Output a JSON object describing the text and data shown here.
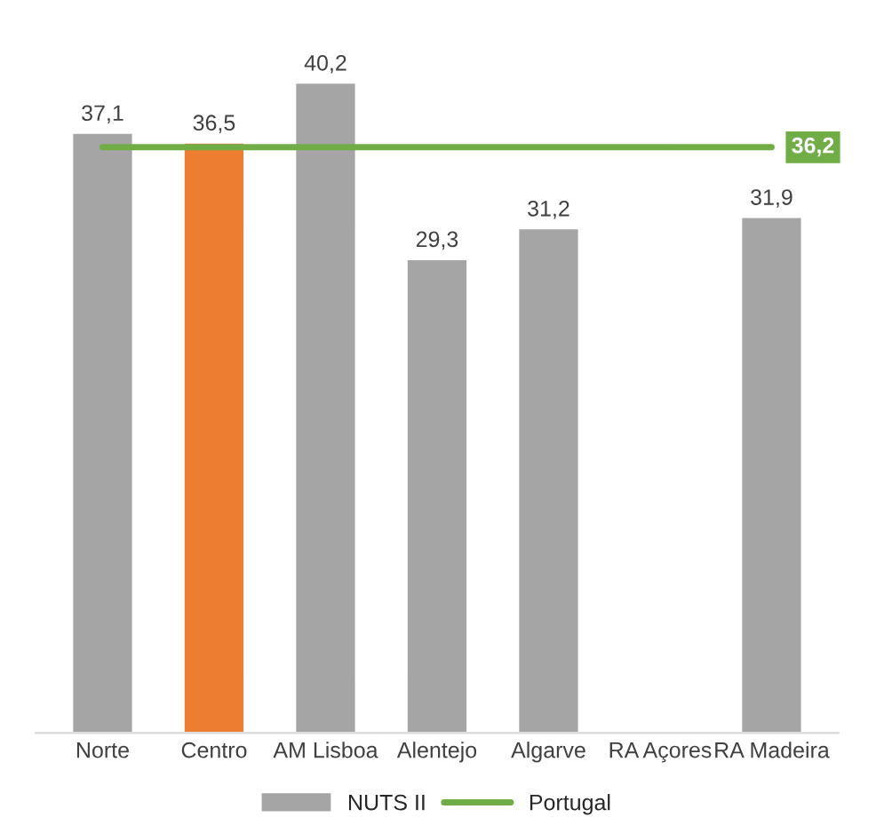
{
  "chart_data": {
    "type": "bar",
    "categories": [
      "Norte",
      "Centro",
      "AM Lisboa",
      "Alentejo",
      "Algarve",
      "RA Açores",
      "RA Madeira"
    ],
    "series": [
      {
        "name": "NUTS II",
        "color": "#a5a5a5",
        "colors": [
          "#a5a5a5",
          "#ed7d31",
          "#a5a5a5",
          "#a5a5a5",
          "#a5a5a5",
          "#a5a5a5",
          "#a5a5a5"
        ],
        "values": [
          37.1,
          36.5,
          40.2,
          29.3,
          31.2,
          null,
          31.9
        ],
        "value_labels": [
          "37,1",
          "36,5",
          "40,2",
          "29,3",
          "31,2",
          null,
          "31,9"
        ]
      },
      {
        "name": "Portugal",
        "type": "line",
        "color": "#70ad47",
        "values": [
          36.2,
          36.2,
          36.2,
          36.2,
          36.2,
          36.2,
          36.2
        ],
        "value_labels": [
          null,
          null,
          null,
          null,
          null,
          null,
          "36,2"
        ]
      }
    ],
    "legend": "bottom",
    "grid": false
  }
}
